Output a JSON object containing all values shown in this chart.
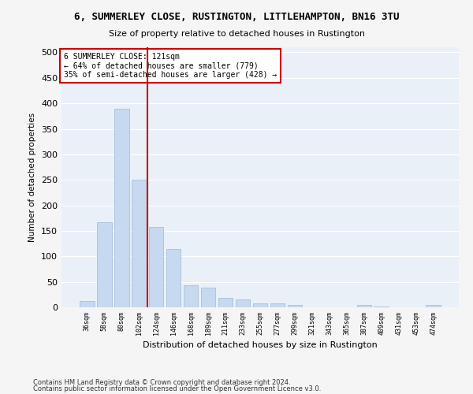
{
  "title": "6, SUMMERLEY CLOSE, RUSTINGTON, LITTLEHAMPTON, BN16 3TU",
  "subtitle": "Size of property relative to detached houses in Rustington",
  "xlabel": "Distribution of detached houses by size in Rustington",
  "ylabel": "Number of detached properties",
  "bar_color": "#c6d9f0",
  "bar_edge_color": "#9bbad8",
  "background_color": "#eaf0f8",
  "grid_color": "#ffffff",
  "annotation_box_color": "#cc0000",
  "vline_color": "#cc0000",
  "annotation_title": "6 SUMMERLEY CLOSE: 121sqm",
  "annotation_line1": "← 64% of detached houses are smaller (779)",
  "annotation_line2": "35% of semi-detached houses are larger (428) →",
  "categories": [
    "36sqm",
    "58sqm",
    "80sqm",
    "102sqm",
    "124sqm",
    "146sqm",
    "168sqm",
    "189sqm",
    "211sqm",
    "233sqm",
    "255sqm",
    "277sqm",
    "299sqm",
    "321sqm",
    "343sqm",
    "365sqm",
    "387sqm",
    "409sqm",
    "431sqm",
    "453sqm",
    "474sqm"
  ],
  "values": [
    12,
    167,
    390,
    250,
    157,
    115,
    44,
    39,
    18,
    15,
    8,
    7,
    4,
    0,
    0,
    0,
    5,
    1,
    0,
    0,
    5
  ],
  "ylim": [
    0,
    510
  ],
  "yticks": [
    0,
    50,
    100,
    150,
    200,
    250,
    300,
    350,
    400,
    450,
    500
  ],
  "footnote1": "Contains HM Land Registry data © Crown copyright and database right 2024.",
  "footnote2": "Contains public sector information licensed under the Open Government Licence v3.0."
}
